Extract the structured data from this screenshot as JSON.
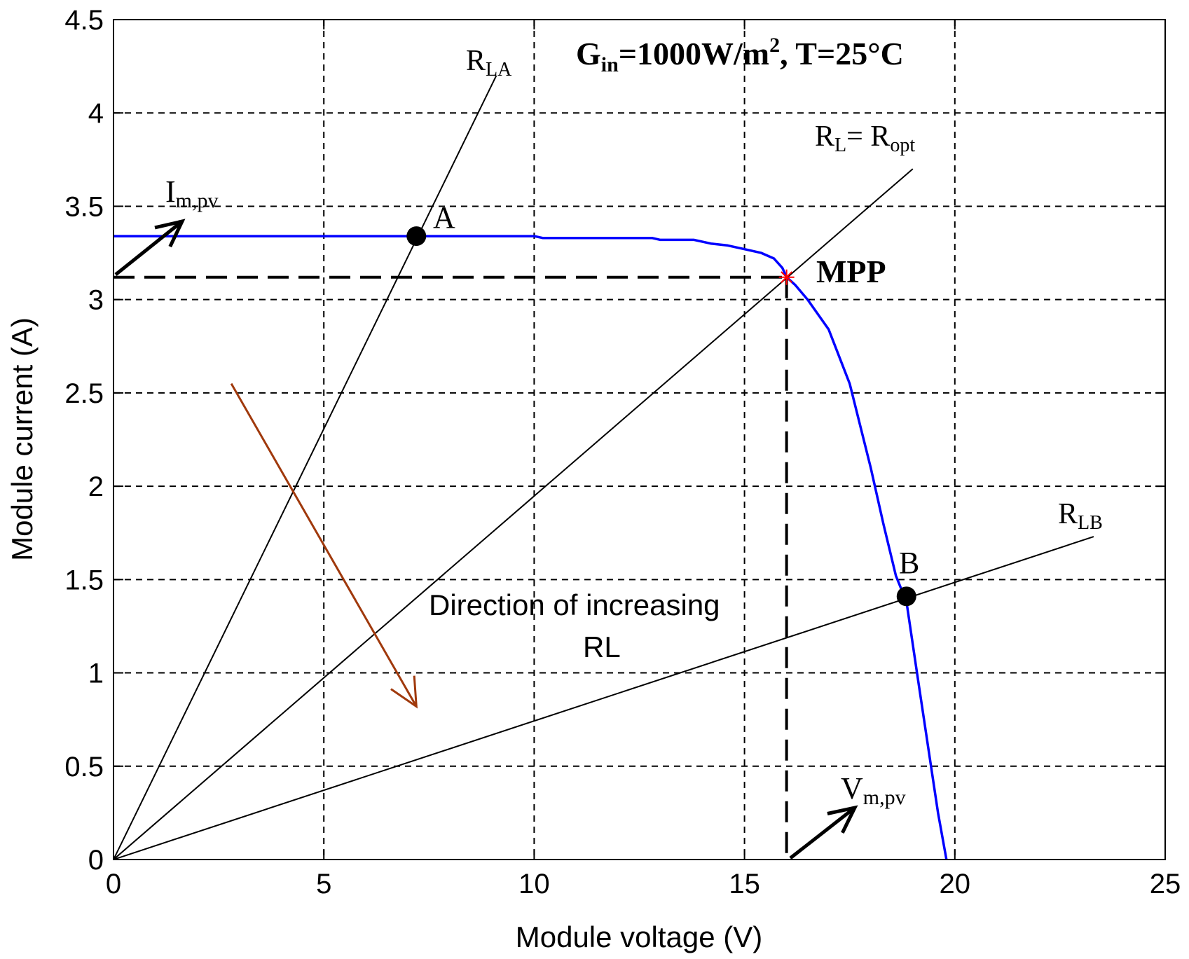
{
  "chart_data": {
    "type": "line",
    "title": "",
    "xlabel": "Module voltage (V)",
    "ylabel": "Module current (A)",
    "xlim": [
      0,
      25
    ],
    "ylim": [
      0,
      4.5
    ],
    "xticks": [
      "0",
      "5",
      "10",
      "15",
      "20",
      "25"
    ],
    "yticks": [
      "0",
      "0.5",
      "1",
      "1.5",
      "2",
      "2.5",
      "3",
      "3.5",
      "4",
      "4.5"
    ],
    "grid": true,
    "condition": {
      "g": "G",
      "g_sub": "in",
      "mid": "=1000W/m",
      "sup": "2",
      "tail": ", T=25°C"
    },
    "iv_curve": {
      "color": "#0000ff",
      "points": [
        [
          0,
          3.34
        ],
        [
          2,
          3.34
        ],
        [
          4,
          3.34
        ],
        [
          6,
          3.34
        ],
        [
          8,
          3.34
        ],
        [
          10,
          3.34
        ],
        [
          10.2,
          3.33
        ],
        [
          11,
          3.33
        ],
        [
          12,
          3.33
        ],
        [
          12.8,
          3.33
        ],
        [
          13,
          3.32
        ],
        [
          13.8,
          3.32
        ],
        [
          14.2,
          3.3
        ],
        [
          14.6,
          3.29
        ],
        [
          15.0,
          3.27
        ],
        [
          15.4,
          3.25
        ],
        [
          15.7,
          3.22
        ],
        [
          15.9,
          3.17
        ],
        [
          16.0,
          3.12
        ],
        [
          16.2,
          3.08
        ],
        [
          16.5,
          3.0
        ],
        [
          17.0,
          2.84
        ],
        [
          17.5,
          2.55
        ],
        [
          18.0,
          2.1
        ],
        [
          18.3,
          1.8
        ],
        [
          18.6,
          1.52
        ],
        [
          18.85,
          1.38
        ],
        [
          19.1,
          1.0
        ],
        [
          19.4,
          0.55
        ],
        [
          19.6,
          0.25
        ],
        [
          19.8,
          0.0
        ]
      ]
    },
    "load_lines": [
      {
        "label_main": "R",
        "label_sub": "LA",
        "x_end": 9.1,
        "y_end": 4.2,
        "slope": 0.4615
      },
      {
        "label_main": "R",
        "label_sub": "L",
        "label_tail": "= R",
        "label_sub2": "opt",
        "x_end": 19.0,
        "y_end": 3.7,
        "slope": 0.1947
      },
      {
        "label_main": "R",
        "label_sub": "LB",
        "x_end": 23.3,
        "y_end": 1.73,
        "slope": 0.0745
      }
    ],
    "points": [
      {
        "label": "A",
        "x": 7.2,
        "y": 3.34
      },
      {
        "label": "B",
        "x": 18.85,
        "y": 1.41
      }
    ],
    "mpp": {
      "label": "MPP",
      "x": 16.0,
      "y": 3.12,
      "marker_color": "#ff0000"
    },
    "annotations": {
      "im_main": "I",
      "im_sub": "m,pv",
      "vm_main": "V",
      "vm_sub": "m,pv",
      "direction_line1": "Direction of increasing",
      "direction_line2": "RL",
      "direction_arrow": {
        "from": [
          2.8,
          2.55
        ],
        "to": [
          7.2,
          0.82
        ],
        "color": "#a0390c"
      }
    }
  }
}
